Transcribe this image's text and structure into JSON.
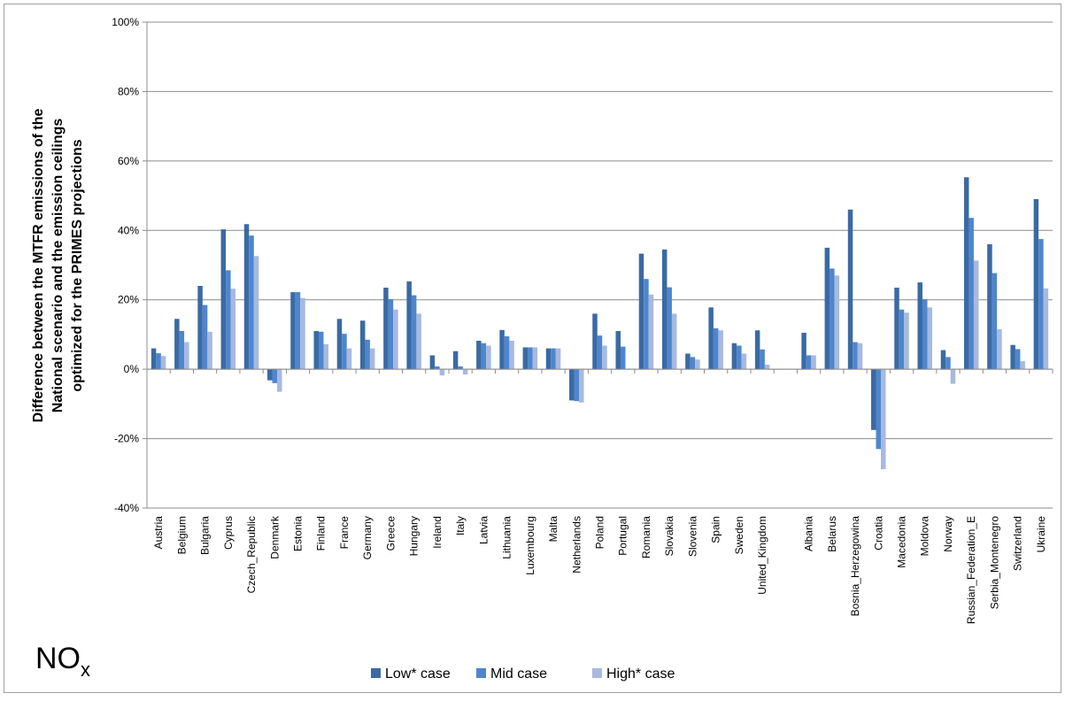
{
  "chart_data": {
    "type": "bar",
    "title": "",
    "xlabel": "",
    "ylabel_lines": [
      "Difference between the MTFR emissions of the",
      "National scenario and the emission ceilings",
      "optimized for the PRIMES projections"
    ],
    "annotation": {
      "main": "NO",
      "subscript": "x"
    },
    "ylim": [
      -40,
      100
    ],
    "yticks": [
      -40,
      -20,
      0,
      20,
      40,
      60,
      80,
      100
    ],
    "ytick_labels": [
      "-40%",
      "-20%",
      "0%",
      "20%",
      "40%",
      "60%",
      "80%",
      "100%"
    ],
    "grid": true,
    "legend_position": "bottom",
    "categories": [
      "Austria",
      "Belgium",
      "Bulgaria",
      "Cyprus",
      "Czech_Republic",
      "Denmark",
      "Estonia",
      "Finland",
      "France",
      "Germany",
      "Greece",
      "Hungary",
      "Ireland",
      "Italy",
      "Latvia",
      "Lithuania",
      "Luxembourg",
      "Malta",
      "Netherlands",
      "Poland",
      "Portugal",
      "Romania",
      "Slovakia",
      "Slovenia",
      "Spain",
      "Sweden",
      "United_Kingdom",
      "",
      "Albania",
      "Belarus",
      "Bosnia_Herzegowina",
      "Croatia",
      "Macedonia",
      "Moldova",
      "Norway",
      "Russian_Federation_E",
      "Serbia_Montenegro",
      "Switzerland",
      "Ukraine"
    ],
    "series": [
      {
        "name": "Low* case",
        "color": "#3a6aa4",
        "values": [
          6,
          14.5,
          24,
          40.3,
          41.8,
          -3.2,
          22.2,
          11,
          14.5,
          14,
          23.5,
          25.3,
          4,
          5.2,
          8.2,
          11.3,
          6.3,
          6,
          -9,
          16,
          11,
          33.3,
          34.5,
          4.5,
          17.8,
          7.5,
          11.2,
          null,
          10.5,
          35,
          46,
          -17.5,
          23.5,
          25,
          5.5,
          55.3,
          36,
          7,
          49
        ]
      },
      {
        "name": "Mid case",
        "color": "#4f86cc",
        "values": [
          4.6,
          11,
          18.5,
          28.5,
          38.5,
          -4,
          22.2,
          10.8,
          10.2,
          8.5,
          20.2,
          21.3,
          0.8,
          0.8,
          7.5,
          9.5,
          6.3,
          6,
          -9.2,
          9.7,
          6.5,
          26,
          23.6,
          3.5,
          11.8,
          6.8,
          5.7,
          null,
          4,
          29,
          7.8,
          -23,
          17.2,
          20.2,
          3.5,
          43.6,
          27.7,
          5.8,
          37.5
        ]
      },
      {
        "name": "High* case",
        "color": "#a7b9e0",
        "values": [
          3.8,
          7.8,
          10.8,
          23.2,
          32.6,
          -6.5,
          20.5,
          7.2,
          6,
          6,
          17.2,
          16,
          -1.8,
          -1.5,
          6.8,
          8.2,
          6.3,
          6,
          -9.6,
          6.8,
          0,
          21.5,
          16,
          2.8,
          11.2,
          4.5,
          1.3,
          null,
          4,
          27,
          7.5,
          -28.8,
          16.3,
          17.8,
          -4.2,
          31.3,
          11.5,
          2.3,
          23.3
        ]
      }
    ]
  }
}
